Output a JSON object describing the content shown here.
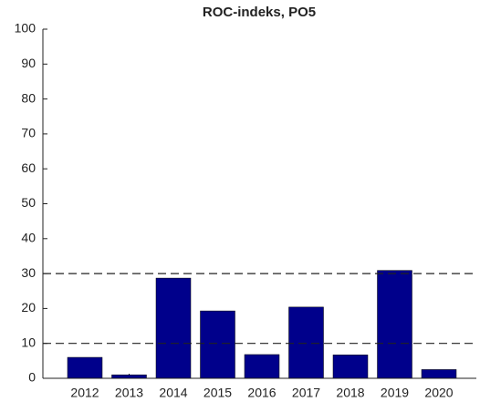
{
  "chart_data": {
    "type": "bar",
    "title": "ROC-indeks, PO5",
    "categories": [
      "2012",
      "2013",
      "2014",
      "2015",
      "2016",
      "2017",
      "2018",
      "2019",
      "2020"
    ],
    "values": [
      6,
      1,
      28.7,
      19.3,
      6.8,
      20.4,
      6.7,
      30.9,
      2.5
    ],
    "color": "#00008b",
    "ylim": [
      0,
      100
    ],
    "yticks": [
      0,
      10,
      20,
      30,
      40,
      50,
      60,
      70,
      80,
      90,
      100
    ],
    "reference_lines": [
      10,
      30
    ]
  }
}
